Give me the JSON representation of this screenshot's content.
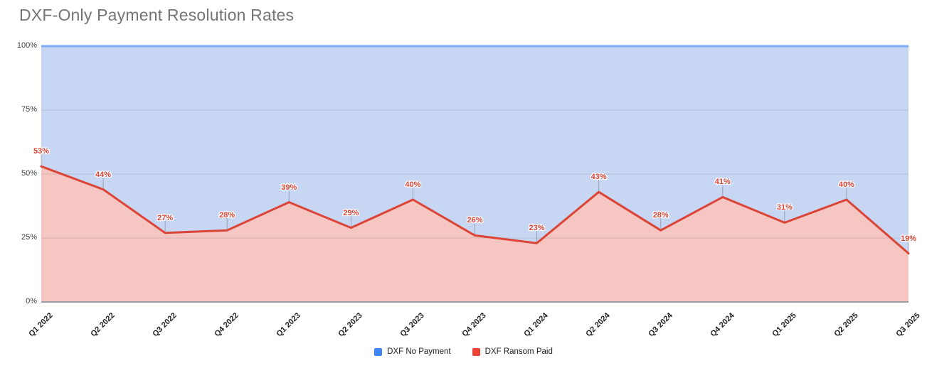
{
  "title": "DXF-Only Payment Resolution Rates",
  "chart_data": {
    "type": "area",
    "stacked": "percent",
    "title": "DXF-Only Payment Resolution Rates",
    "categories": [
      "Q1 2022",
      "Q2 2022",
      "Q3 2022",
      "Q4 2022",
      "Q1 2023",
      "Q2 2023",
      "Q3 2023",
      "Q4 2023",
      "Q1 2024",
      "Q2 2024",
      "Q3 2024",
      "Q4 2024",
      "Q1 2025",
      "Q2 2025",
      "Q3 2025"
    ],
    "series": [
      {
        "name": "DXF No Payment",
        "color": "#4285F4",
        "fill_color": "#C7D6F2",
        "line_color": "#7BAAF7",
        "values": [
          47,
          56,
          73,
          72,
          61,
          71,
          60,
          74,
          77,
          57,
          72,
          59,
          69,
          60,
          81
        ]
      },
      {
        "name": "DXF Ransom Paid",
        "color": "#EA4335",
        "fill_color": "#F5C6C2",
        "line_color": "#DB4437",
        "values": [
          53,
          44,
          27,
          28,
          39,
          29,
          40,
          26,
          23,
          43,
          28,
          41,
          31,
          40,
          19
        ],
        "point_labels": [
          "53%",
          "44%",
          "27%",
          "28%",
          "39%",
          "29%",
          "40%",
          "26%",
          "23%",
          "43%",
          "28%",
          "41%",
          "31%",
          "40%",
          "19%"
        ]
      }
    ],
    "y_tick_labels": [
      "100%",
      "75%",
      "50%",
      "25%",
      "0%"
    ],
    "y_tick_values": [
      100,
      75,
      50,
      25,
      0
    ],
    "ylim": [
      0,
      100
    ],
    "grid": "horizontal",
    "legend_position": "bottom",
    "data_label_color": "#DB4437",
    "gridline_color": "rgba(60,64,67,0.16)",
    "axis_line_color": "#9AA0A6",
    "leader_line_color": "rgba(60,64,67,0.35)"
  },
  "legend": {
    "items": [
      {
        "label": "DXF No Payment",
        "color": "#4285F4"
      },
      {
        "label": "DXF Ransom Paid",
        "color": "#EA4335"
      }
    ]
  },
  "title_color": "#757575"
}
